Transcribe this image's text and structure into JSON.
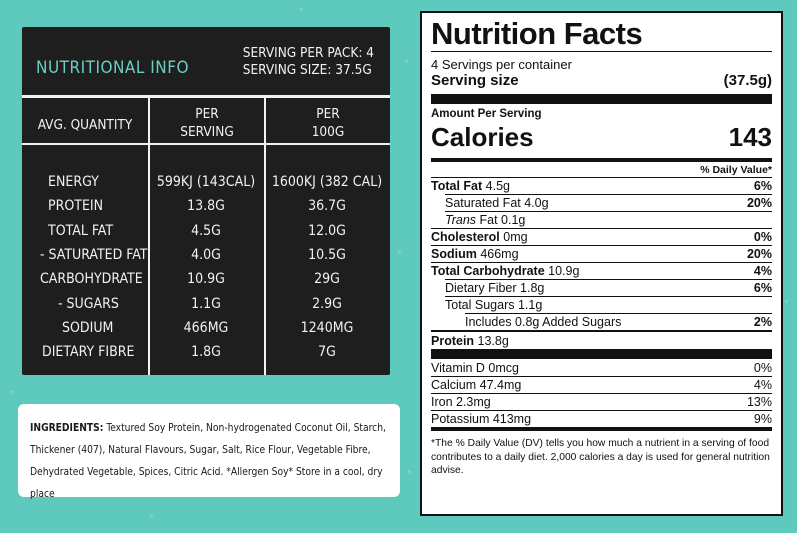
{
  "nutritional_info": {
    "title": "Nutritional Info",
    "serving_per_pack": "Serving per pack: 4",
    "serving_size": "Serving size: 37.5g",
    "col_quantity": "Avg. Quantity",
    "col_serving_1": "Per",
    "col_serving_2": "Serving",
    "col_100g_1": "Per",
    "col_100g_2": "100g",
    "rows": [
      {
        "name": "Energy",
        "serving": "599kJ (143cal)",
        "per100": "1600kJ (382 cal)"
      },
      {
        "name": "Protein",
        "serving": "13.8g",
        "per100": "36.7g"
      },
      {
        "name": "Total Fat",
        "serving": "4.5g",
        "per100": "12.0g"
      },
      {
        "name": "- Saturated Fat",
        "serving": "4.0g",
        "per100": "10.5g"
      },
      {
        "name": "Carbohydrate",
        "serving": "10.9g",
        "per100": "29g"
      },
      {
        "name": "- Sugars",
        "serving": "1.1g",
        "per100": "2.9g"
      },
      {
        "name": "Sodium",
        "serving": "466mg",
        "per100": "1240mg"
      },
      {
        "name": "Dietary Fibre",
        "serving": "1.8g",
        "per100": "7g"
      }
    ]
  },
  "ingredients": {
    "label": "INGREDIENTS:",
    "text": "Textured Soy Protein, Non-hydrogenated Coconut Oil, Starch, Thickener (407), Natural Flavours, Sugar, Salt, Rice Flour, Vegetable Fibre, Dehydrated Vegetable, Spices, Citric Acid. *Allergen Soy* Store in a cool, dry place"
  },
  "facts": {
    "title": "Nutrition Facts",
    "servings": "4 Servings per container",
    "serving_size_label": "Serving size",
    "serving_size_value": "(37.5g)",
    "amount_per_serving": "Amount Per Serving",
    "calories_label": "Calories",
    "calories_value": "143",
    "dv_header": "% Daily Value*",
    "total_fat_label": "Total Fat",
    "total_fat_value": "4.5g",
    "total_fat_dv": "6%",
    "sat_fat": "Saturated Fat 4.0g",
    "sat_fat_dv": "20%",
    "trans_label": "Trans",
    "trans_value": "Fat 0.1g",
    "chol_label": "Cholesterol",
    "chol_value": "0mg",
    "chol_dv": "0%",
    "sodium_label": "Sodium",
    "sodium_value": "466mg",
    "sodium_dv": "20%",
    "carb_label": "Total Carbohydrate",
    "carb_value": "10.9g",
    "carb_dv": "4%",
    "fiber": "Dietary Fiber 1.8g",
    "fiber_dv": "6%",
    "sugars": "Total Sugars 1.1g",
    "added_sugars": "Includes 0.8g Added Sugars",
    "added_sugars_dv": "2%",
    "protein_label": "Protein",
    "protein_value": "13.8g",
    "vitamins": [
      {
        "name": "Vitamin D 0mcg",
        "dv": "0%"
      },
      {
        "name": "Calcium 47.4mg",
        "dv": "4%"
      },
      {
        "name": "Iron 2.3mg",
        "dv": "13%"
      },
      {
        "name": "Potassium 413mg",
        "dv": "9%"
      }
    ],
    "footnote": "*The % Daily Value (DV) tells you how much a nutrient in a serving of food contributes to a daily diet. 2,000 calories a day is used for general nutrition advise."
  }
}
